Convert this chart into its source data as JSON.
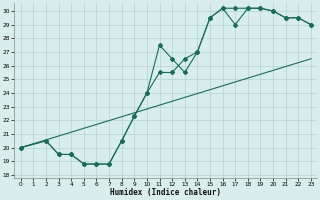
{
  "xlabel": "Humidex (Indice chaleur)",
  "xlim": [
    -0.5,
    23.5
  ],
  "ylim": [
    17.8,
    30.6
  ],
  "yticks": [
    18,
    19,
    20,
    21,
    22,
    23,
    24,
    25,
    26,
    27,
    28,
    29,
    30
  ],
  "xticks": [
    0,
    1,
    2,
    3,
    4,
    5,
    6,
    7,
    8,
    9,
    10,
    11,
    12,
    13,
    14,
    15,
    16,
    17,
    18,
    19,
    20,
    21,
    22,
    23
  ],
  "bg_color": "#d8eeec",
  "grid_color": "#b4d4d0",
  "line_color": "#1a6b5a",
  "line1_x": [
    0,
    2,
    3,
    4,
    5,
    6,
    7,
    8,
    9,
    10,
    11,
    12,
    13,
    14,
    15,
    16,
    17,
    18,
    19,
    20,
    21,
    22,
    23
  ],
  "line1_y": [
    20.0,
    20.5,
    19.5,
    19.5,
    18.8,
    18.8,
    18.8,
    20.5,
    22.3,
    24.0,
    25.5,
    25.5,
    26.5,
    27.0,
    29.5,
    30.2,
    29.0,
    30.2,
    30.2,
    30.0,
    29.5,
    29.5,
    29.0
  ],
  "line2_x": [
    0,
    2,
    3,
    4,
    5,
    6,
    7,
    8,
    9,
    10,
    11,
    12,
    13,
    14,
    15,
    16,
    17,
    18,
    19,
    20,
    21,
    22,
    23
  ],
  "line2_y": [
    20.0,
    20.5,
    19.5,
    19.5,
    18.8,
    18.8,
    18.8,
    20.5,
    22.3,
    24.0,
    27.5,
    26.5,
    25.5,
    27.0,
    29.5,
    30.2,
    30.2,
    30.2,
    30.2,
    30.0,
    29.5,
    29.5,
    29.0
  ],
  "line3_x": [
    0,
    23
  ],
  "line3_y": [
    20.0,
    26.5
  ]
}
